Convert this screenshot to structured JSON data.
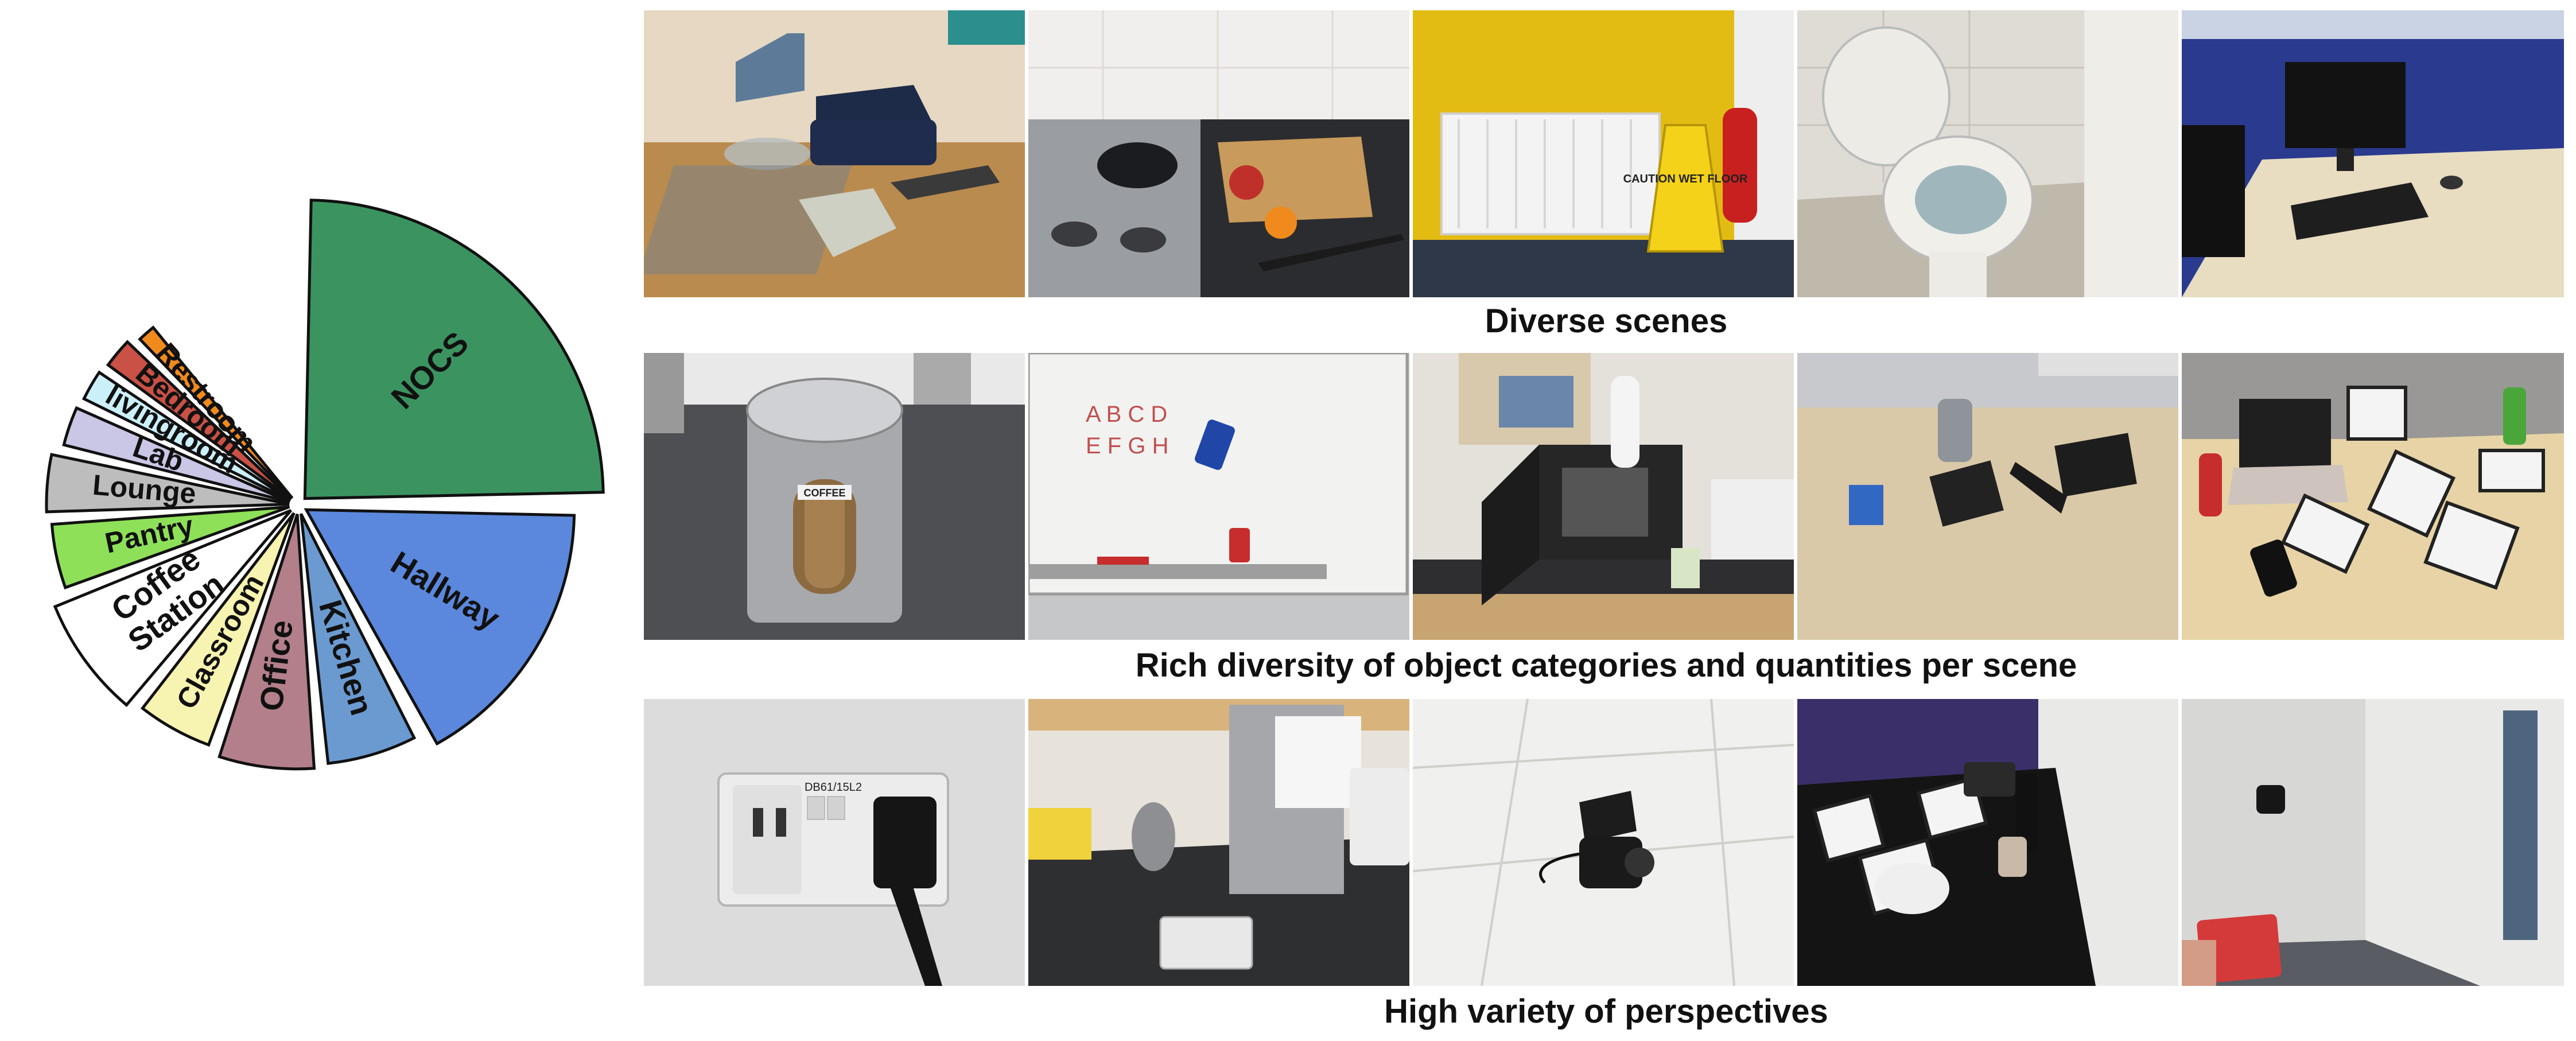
{
  "chart_data": {
    "type": "pie",
    "style": "exploded-rose",
    "slices": [
      {
        "label": "NOCS",
        "lines": [
          "NOCS"
        ],
        "value": 25,
        "color": "#3b9460"
      },
      {
        "label": "Hallway",
        "lines": [
          "Hallway"
        ],
        "value": 13,
        "color": "#5b88dc"
      },
      {
        "label": "Kitchen",
        "lines": [
          "Kitchen"
        ],
        "value": 8,
        "color": "#6b9ad0"
      },
      {
        "label": "Office",
        "lines": [
          "Office"
        ],
        "value": 9,
        "color": "#b27f8a"
      },
      {
        "label": "Classroom",
        "lines": [
          "Classroom"
        ],
        "value": 7,
        "color": "#f7f3b0"
      },
      {
        "label": "Coffee Station",
        "lines": [
          "Coffee",
          "Station"
        ],
        "value": 9,
        "color": "#ffffff"
      },
      {
        "label": "Pantry",
        "lines": [
          "Pantry"
        ],
        "value": 5,
        "color": "#8fe059"
      },
      {
        "label": "Lounge",
        "lines": [
          "Lounge"
        ],
        "value": 6,
        "color": "#bdbdbd"
      },
      {
        "label": "Lab",
        "lines": [
          "Lab"
        ],
        "value": 4,
        "color": "#c9c6e6"
      },
      {
        "label": "livingroom",
        "lines": [
          "livingroom"
        ],
        "value": 3.5,
        "color": "#ccf0fa"
      },
      {
        "label": "Bedroom",
        "lines": [
          "Bedroom"
        ],
        "value": 3,
        "color": "#c95145"
      },
      {
        "label": "Restroom",
        "lines": [
          "Restroom"
        ],
        "value": 2,
        "color": "#f08a1c"
      }
    ]
  },
  "captions": {
    "row1": "Diverse scenes",
    "row2": "Rich diversity of object categories and quantities per scene",
    "row3": "High variety of perspectives"
  },
  "photo_text": {
    "coffee": "COFFEE",
    "whiteboard_line1": "A B C D",
    "whiteboard_line2": "E F G H",
    "socket": "DB61/15L2",
    "caution_sign": "CAUTION WET FLOOR"
  },
  "photos": [
    {
      "name": "photo-living-room",
      "label": "living room with sofa and glass table"
    },
    {
      "name": "photo-kitchen-hob",
      "label": "kitchen hob with pot and chopping board"
    },
    {
      "name": "photo-yellow-wall",
      "label": "yellow wall with radiator and fire extinguisher"
    },
    {
      "name": "photo-restroom",
      "label": "restroom toilet"
    },
    {
      "name": "photo-office-desk",
      "label": "office desk with computer monitor"
    },
    {
      "name": "photo-coffee-canister",
      "label": "coffee canister"
    },
    {
      "name": "photo-whiteboard",
      "label": "whiteboard with erasers"
    },
    {
      "name": "photo-microwave",
      "label": "microwave in pantry"
    },
    {
      "name": "photo-table-objects",
      "label": "table with cube, mug, book and umbrella"
    },
    {
      "name": "photo-table-markers",
      "label": "table with laptop and markers"
    },
    {
      "name": "photo-wall-socket",
      "label": "wall socket with plug"
    },
    {
      "name": "photo-kettle-counter",
      "label": "kitchen counter with kettle and water boiler"
    },
    {
      "name": "photo-ceiling-camera",
      "label": "ceiling mounted camera"
    },
    {
      "name": "photo-markers-bowl",
      "label": "dark table with markers, bowl and camera"
    },
    {
      "name": "photo-door-card",
      "label": "door with card reader"
    }
  ]
}
